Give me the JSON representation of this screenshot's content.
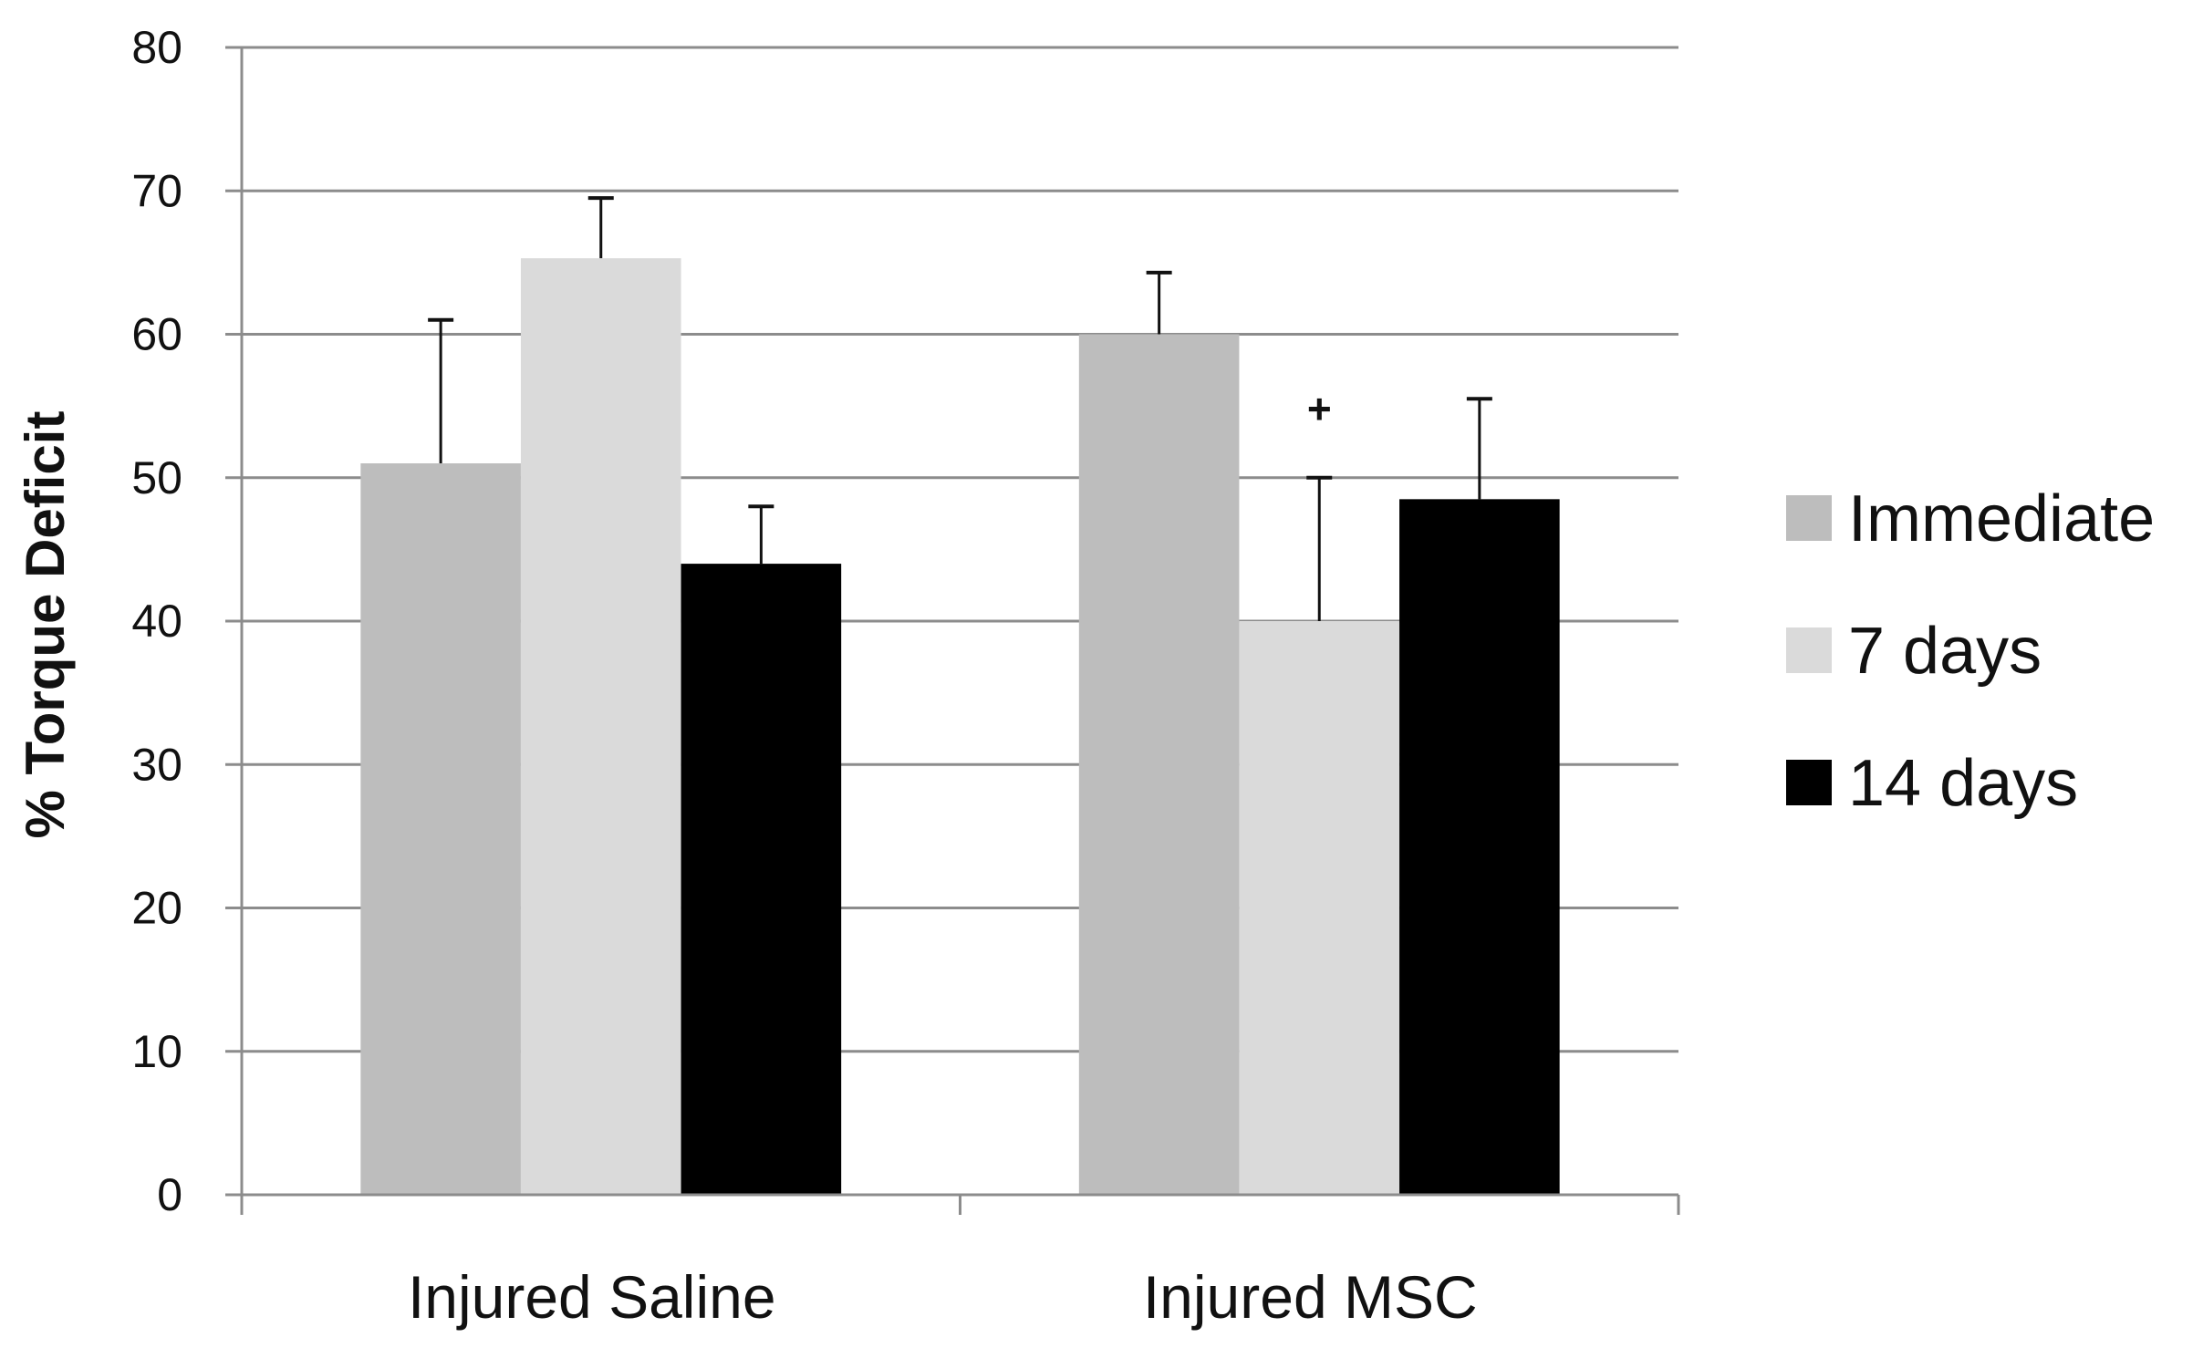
{
  "chart_data": {
    "type": "bar",
    "title": "",
    "xlabel": "",
    "ylabel": "% Torque Deficit",
    "ylim": [
      0,
      80
    ],
    "yticks": [
      "0",
      "10",
      "20",
      "30",
      "40",
      "50",
      "60",
      "70",
      "80"
    ],
    "grid": true,
    "legend_position": "right",
    "categories": [
      "Injured Saline",
      "Injured MSC"
    ],
    "series": [
      {
        "name": "Immediate",
        "color": "#bdbdbd",
        "values": [
          51,
          60
        ],
        "errors": [
          10,
          4.3
        ]
      },
      {
        "name": "7 days",
        "color": "#dadada",
        "values": [
          65.3,
          40
        ],
        "errors": [
          4.2,
          10
        ]
      },
      {
        "name": "14 days",
        "color": "#000000",
        "values": [
          44,
          48.5
        ],
        "errors": [
          4,
          7
        ]
      }
    ],
    "annotations": [
      {
        "text": "+",
        "category": "Injured MSC",
        "series": "7 days"
      }
    ]
  }
}
